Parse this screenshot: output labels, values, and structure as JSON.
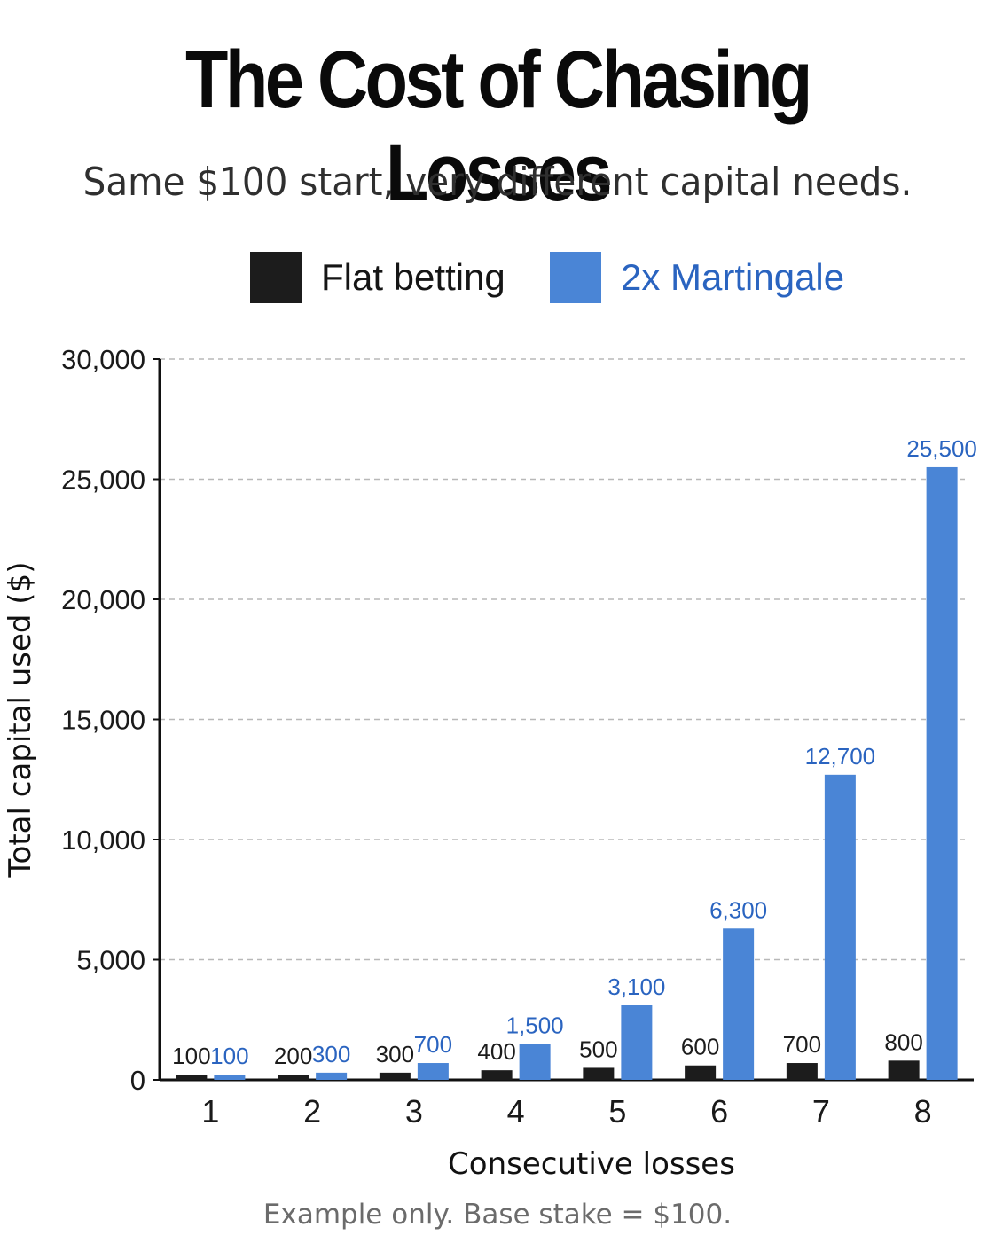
{
  "chart_data": {
    "type": "bar",
    "title": "The Cost of Chasing Losses",
    "subtitle": "Same $100 start, very different capital needs.",
    "xlabel": "Consecutive losses",
    "ylabel": "Total capital used ($)",
    "categories": [
      "1",
      "2",
      "3",
      "4",
      "5",
      "6",
      "7",
      "8"
    ],
    "series": [
      {
        "name": "Flat betting",
        "color": "#1c1c1c",
        "label_color": "#1c1c1c",
        "values": [
          100,
          200,
          300,
          400,
          500,
          600,
          700,
          800
        ],
        "labels": [
          "100",
          "200",
          "300",
          "400",
          "500",
          "600",
          "700",
          "800"
        ]
      },
      {
        "name": "2x Martingale",
        "color": "#4a85d6",
        "label_color": "#2a64c0",
        "values": [
          100,
          300,
          700,
          1500,
          3100,
          6300,
          12700,
          25500
        ],
        "labels": [
          "100",
          "300",
          "700",
          "1,500",
          "3,100",
          "6,300",
          "12,700",
          "25,500"
        ]
      }
    ],
    "ylim": [
      0,
      30000
    ],
    "yticks": [
      0,
      5000,
      10000,
      15000,
      20000,
      25000,
      30000
    ],
    "ytick_labels": [
      "0",
      "5,000",
      "10,000",
      "15,000",
      "20,000",
      "25,000",
      "30,000"
    ],
    "grid": "horizontal-dashed",
    "legend_position": "top-center",
    "footnote": "Example only. Base stake = $100."
  }
}
